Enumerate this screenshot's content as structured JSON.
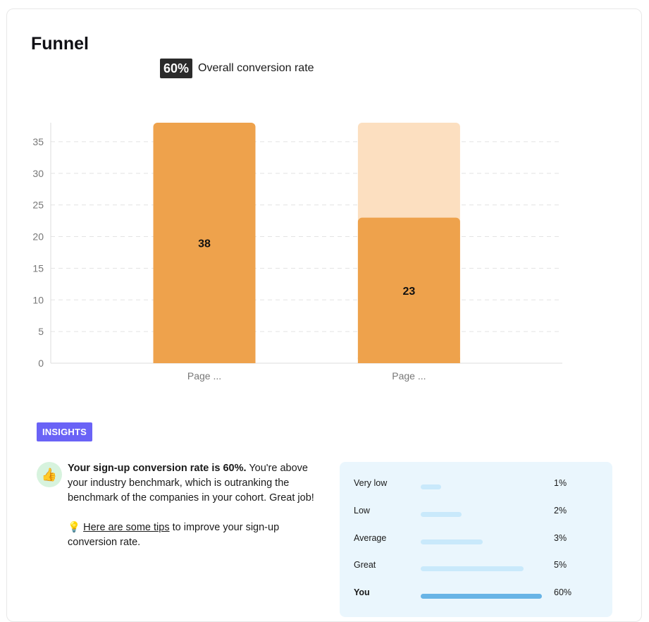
{
  "header": {
    "title": "Funnel",
    "rate_value": "60%",
    "rate_label": "Overall conversion rate"
  },
  "chart_data": {
    "type": "bar",
    "categories": [
      "Page ...",
      "Page ..."
    ],
    "values": [
      38,
      23
    ],
    "background_values": [
      38,
      38
    ],
    "data_labels": [
      "38",
      "23"
    ],
    "yticks": [
      0,
      5,
      10,
      15,
      20,
      25,
      30,
      35
    ],
    "ylim": [
      0,
      38
    ],
    "grid": true,
    "colors": {
      "bar": "#eea24c",
      "bar_remaining": "#fcdfc0"
    }
  },
  "insights": {
    "badge": "INSIGHTS",
    "icon": "thumbs-up-icon",
    "headline": "Your sign-up conversion rate is 60%.",
    "body": " You're above your industry benchmark, which is outranking the benchmark of the companies in your cohort. Great job!",
    "tips_icon": "lightbulb-icon",
    "tips_link": "Here are some tips",
    "tips_rest": " to improve your sign-up conversion rate."
  },
  "benchmarks": [
    {
      "label": "Very low",
      "value": "1%",
      "level": 0.17
    },
    {
      "label": "Low",
      "value": "2%",
      "level": 0.34
    },
    {
      "label": "Average",
      "value": "3%",
      "level": 0.51
    },
    {
      "label": "Great",
      "value": "5%",
      "level": 0.85
    },
    {
      "label": "You",
      "value": "60%",
      "level": 1.0
    }
  ]
}
